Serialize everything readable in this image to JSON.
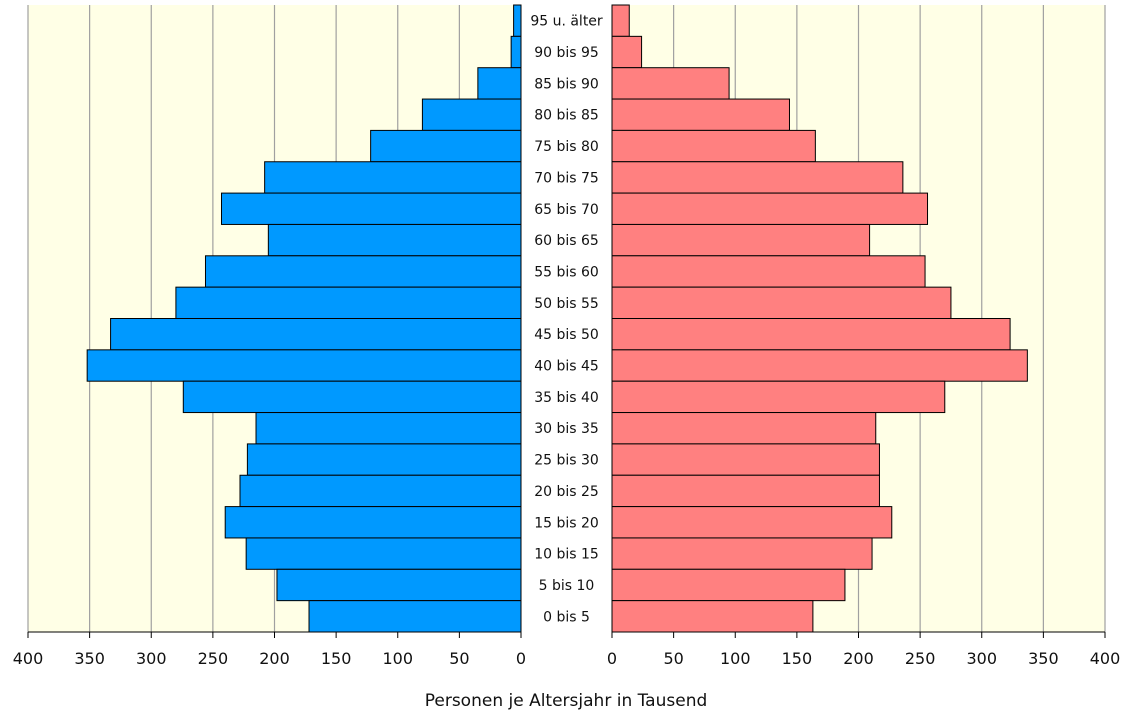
{
  "chart_data": {
    "type": "bar",
    "orientation": "horizontal",
    "layout": "population-pyramid",
    "xlabel": "Personen je Altersjahr in Tausend",
    "categories": [
      "95 u. älter",
      "90 bis 95",
      "85 bis 90",
      "80 bis 85",
      "75 bis 80",
      "70 bis 75",
      "65 bis 70",
      "60 bis 65",
      "55 bis 60",
      "50 bis 55",
      "45 bis 50",
      "40 bis 45",
      "35 bis 40",
      "30 bis 35",
      "25 bis 30",
      "20 bis 25",
      "15 bis 20",
      "10 bis 15",
      "5 bis 10",
      "0 bis 5"
    ],
    "series": [
      {
        "side": "left",
        "color": "#0099FF",
        "values": [
          6,
          8,
          35,
          80,
          122,
          208,
          243,
          205,
          256,
          280,
          333,
          352,
          274,
          215,
          222,
          228,
          240,
          223,
          198,
          172
        ]
      },
      {
        "side": "right",
        "color": "#FF8080",
        "values": [
          14,
          24,
          95,
          144,
          165,
          236,
          256,
          209,
          254,
          275,
          323,
          337,
          270,
          214,
          217,
          217,
          227,
          211,
          189,
          163
        ]
      }
    ],
    "xlim": [
      0,
      400
    ],
    "ticks": [
      "400",
      "350",
      "300",
      "250",
      "200",
      "150",
      "100",
      "50",
      "0"
    ],
    "ticks_right": [
      "0",
      "50",
      "100",
      "150",
      "200",
      "250",
      "300",
      "350",
      "400"
    ],
    "colors": {
      "plot_background": "#FFFFE6",
      "gridline": "#A0A0A0"
    },
    "grid": true
  }
}
